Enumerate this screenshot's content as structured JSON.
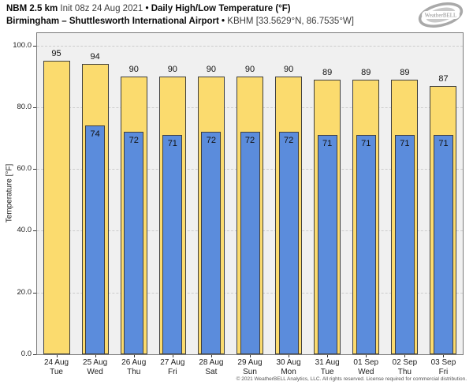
{
  "header": {
    "line1": {
      "model": "NBM 2.5 km",
      "init": "Init 08z 24 Aug 2021",
      "sep": "•",
      "product": "Daily High/Low Temperature (°F)"
    },
    "line2": {
      "station_name": "Birmingham – Shuttlesworth International Airport",
      "sep": "•",
      "station_meta": "KBHM [33.5629°N, 86.7535°W]"
    },
    "logo_text": "WeatherBELL"
  },
  "footer": {
    "copyright": "© 2021 WeatherBELL Analytics, LLC. All rights reserved. License required for commercial distribution."
  },
  "chart_data": {
    "type": "bar",
    "title": "NBM 2.5 km Init 08z 24 Aug 2021 • Daily High/Low Temperature (°F) • Birmingham – Shuttlesworth International Airport • KBHM",
    "xlabel": "",
    "ylabel": "Temperature [°F]",
    "ylim": [
      0,
      104
    ],
    "yticks": [
      0,
      20,
      40,
      60,
      80,
      100
    ],
    "ytick_labels": [
      "0.0",
      "20.0",
      "40.0",
      "60.0",
      "80.0",
      "100.0"
    ],
    "grid": "horizontal-dashed",
    "legend": "none",
    "categories": [
      {
        "date": "24 Aug",
        "day": "Tue"
      },
      {
        "date": "25 Aug",
        "day": "Wed"
      },
      {
        "date": "26 Aug",
        "day": "Thu"
      },
      {
        "date": "27 Aug",
        "day": "Fri"
      },
      {
        "date": "28 Aug",
        "day": "Sat"
      },
      {
        "date": "29 Aug",
        "day": "Sun"
      },
      {
        "date": "30 Aug",
        "day": "Mon"
      },
      {
        "date": "31 Aug",
        "day": "Tue"
      },
      {
        "date": "01 Sep",
        "day": "Wed"
      },
      {
        "date": "02 Sep",
        "day": "Thu"
      },
      {
        "date": "03 Sep",
        "day": "Fri"
      }
    ],
    "series": [
      {
        "name": "Daily High",
        "color": "#fbdb6e",
        "values": [
          95,
          94,
          90,
          90,
          90,
          90,
          90,
          89,
          89,
          89,
          87
        ]
      },
      {
        "name": "Daily Low",
        "color": "#5b8cdc",
        "values": [
          null,
          74,
          72,
          71,
          72,
          72,
          72,
          71,
          71,
          71,
          71
        ]
      }
    ],
    "colors": {
      "bar_border": "#3f3f3f",
      "plot_background": "#f0f0f0",
      "grid_line": "#cdcdcd",
      "figure_background": "#ffffff"
    }
  }
}
